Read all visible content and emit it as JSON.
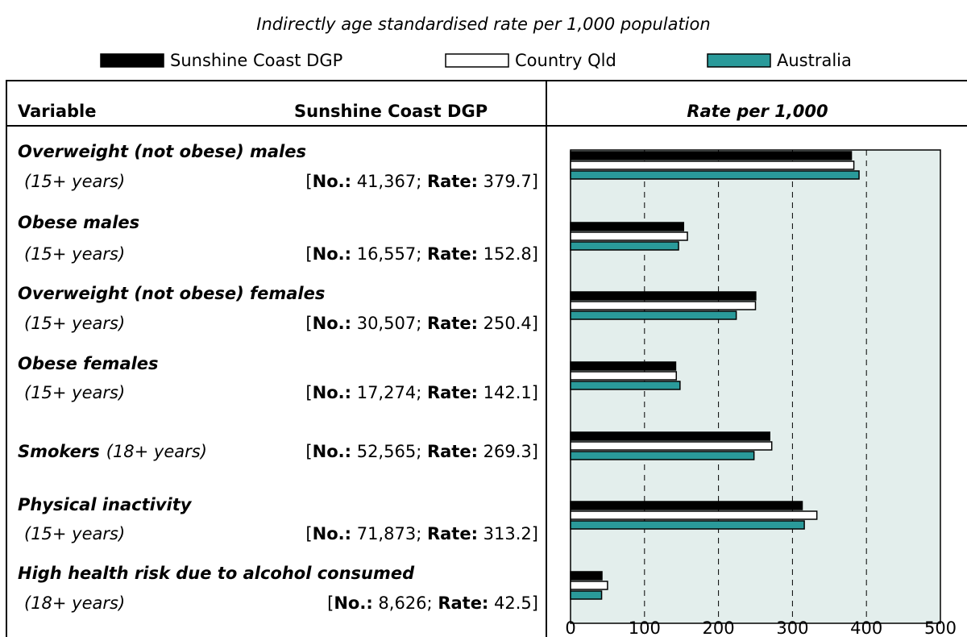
{
  "chart_data": {
    "type": "bar",
    "orientation": "horizontal",
    "subtitle": "Indirectly age standardised rate per 1,000 population",
    "table_header": {
      "variable": "Variable",
      "area": "Sunshine Coast DGP",
      "chart": "Rate per 1,000"
    },
    "no_label": "No.:",
    "rate_label": "Rate:",
    "rows": [
      {
        "name": "Overweight (not obese) males",
        "age": "(15+ years)",
        "count": "41,367"
      },
      {
        "name": "Obese males",
        "age": "(15+ years)",
        "count": "16,557"
      },
      {
        "name": "Overweight (not obese) females",
        "age": "(15+ years)",
        "count": "30,507"
      },
      {
        "name": "Obese females",
        "age": "(15+ years)",
        "count": "17,274"
      },
      {
        "name": "Smokers",
        "age": "(18+ years)",
        "count": "52,565"
      },
      {
        "name": "Physical inactivity",
        "age": "(15+ years)",
        "count": "71,873"
      },
      {
        "name": "High health risk due to alcohol consumed",
        "age": "(18+ years)",
        "count": "8,626"
      }
    ],
    "series": [
      {
        "name": "Sunshine Coast DGP",
        "color": "#000000",
        "values": [
          379.7,
          152.8,
          250.4,
          142.1,
          269.3,
          313.2,
          42.5
        ]
      },
      {
        "name": "Country Qld",
        "color": "#ffffff",
        "values": [
          383,
          158,
          250,
          143,
          272,
          333,
          50
        ]
      },
      {
        "name": "Australia",
        "color": "#2a9a9a",
        "values": [
          390,
          146,
          224,
          148,
          248,
          316,
          42
        ]
      }
    ],
    "xlim": [
      0,
      500
    ],
    "xticks": [
      0,
      100,
      200,
      300,
      400,
      500
    ],
    "grid": true,
    "plot_background": "#e3eeec"
  }
}
